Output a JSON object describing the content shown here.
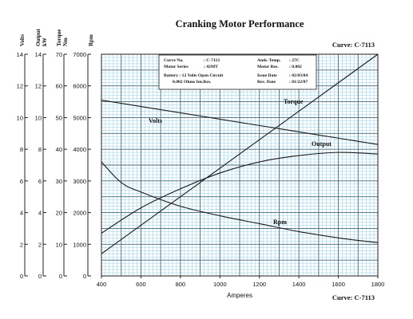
{
  "chart_data": {
    "type": "line",
    "title": "Cranking Motor Performance",
    "curve_label": "Curve: C-7113",
    "xlabel": "Amperes",
    "xlim": [
      400,
      1800
    ],
    "x_ticks": [
      "400",
      "600",
      "800",
      "1000",
      "1200",
      "1400",
      "1600",
      "1800"
    ],
    "axes": [
      {
        "label": "Volts",
        "ylim": [
          0,
          14
        ],
        "ticks": [
          "0",
          "2",
          "4",
          "6",
          "8",
          "10",
          "12",
          "14"
        ]
      },
      {
        "label": "Output kW",
        "ylim": [
          0,
          14
        ],
        "ticks": [
          "0",
          "2",
          "4",
          "6",
          "8",
          "10",
          "12",
          "14"
        ]
      },
      {
        "label": "Torque Nm",
        "ylim": [
          0,
          70
        ],
        "ticks": [
          "0",
          "10",
          "20",
          "30",
          "40",
          "50",
          "60",
          "70"
        ]
      },
      {
        "label": "Rpm",
        "ylim": [
          0,
          7000
        ],
        "ticks": [
          "0",
          "1000",
          "2000",
          "3000",
          "4000",
          "5000",
          "6000",
          "7000"
        ]
      }
    ],
    "grid": true,
    "series": [
      {
        "name": "Volts",
        "axis": "Volts",
        "x": [
          400,
          600,
          800,
          1000,
          1200,
          1400,
          1600,
          1800
        ],
        "y": [
          11.1,
          10.7,
          10.3,
          9.9,
          9.5,
          9.1,
          8.7,
          8.3
        ]
      },
      {
        "name": "Torque",
        "axis": "Torque Nm",
        "x": [
          400,
          600,
          800,
          1000,
          1200,
          1400,
          1600,
          1800
        ],
        "y": [
          7,
          16,
          25,
          34,
          43,
          52,
          61,
          70
        ]
      },
      {
        "name": "Output",
        "axis": "Output kW",
        "x": [
          400,
          600,
          800,
          1000,
          1200,
          1400,
          1600,
          1800
        ],
        "y": [
          2.7,
          4.3,
          5.5,
          6.5,
          7.2,
          7.6,
          7.8,
          7.7
        ]
      },
      {
        "name": "Rpm",
        "axis": "Rpm",
        "x": [
          400,
          500,
          600,
          800,
          1000,
          1200,
          1400,
          1600,
          1800
        ],
        "y": [
          3600,
          2950,
          2650,
          2200,
          1900,
          1650,
          1400,
          1200,
          1050
        ]
      }
    ],
    "info_box": [
      [
        "Curve No.",
        ": C-7113",
        "Amb. Temp.",
        ": 27C"
      ],
      [
        "Motor Series",
        ": 42MT",
        "Motor Res.",
        ": 0.002"
      ],
      [
        "Battery : 12 Volts Open Circuit",
        "",
        "Issue Date",
        ": 02/03/84"
      ],
      [
        "0.002 Ohms Int.Res.",
        "",
        "Rev. Date",
        ": 01/22/87"
      ]
    ]
  }
}
